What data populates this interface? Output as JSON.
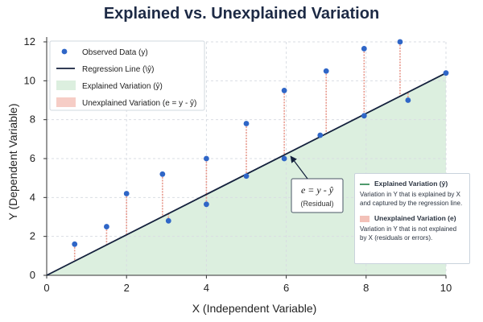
{
  "title": "Explained vs. Unexplained Variation",
  "colors": {
    "title": "#1d2a45",
    "point": "#2f66c7",
    "line": "#14213d",
    "explained_fill": "#dcefdf",
    "residual": "#e89a8e",
    "grid": "#d9dde3"
  },
  "chart_data": {
    "type": "scatter",
    "xlabel": "X (Independent Variable)",
    "ylabel": "Y (Dependent Variable)",
    "xlim": [
      0,
      10
    ],
    "ylim": [
      0,
      12
    ],
    "xticks": [
      0,
      2,
      4,
      6,
      8,
      10
    ],
    "yticks": [
      0,
      2,
      4,
      6,
      8,
      10,
      12
    ],
    "grid": true,
    "legend_position": "top-left",
    "legend": [
      {
        "label": "Observed Data (y)",
        "marker": "point"
      },
      {
        "label": "Regression Line (\\ŷ)",
        "marker": "line"
      },
      {
        "label": "Explained Variation (ŷ)",
        "marker": "green-patch"
      },
      {
        "label": "Unexplained Variation (e = y - ŷ)",
        "marker": "red-patch"
      }
    ],
    "regression_line": {
      "x": [
        0,
        10
      ],
      "y": [
        0,
        10.4
      ]
    },
    "points": [
      {
        "x": 0.7,
        "y": 1.6
      },
      {
        "x": 1.5,
        "y": 2.5
      },
      {
        "x": 2.0,
        "y": 4.2
      },
      {
        "x": 2.9,
        "y": 5.2
      },
      {
        "x": 3.05,
        "y": 2.8
      },
      {
        "x": 4.0,
        "y": 6.0
      },
      {
        "x": 4.0,
        "y": 3.65
      },
      {
        "x": 5.0,
        "y": 7.8
      },
      {
        "x": 5.0,
        "y": 5.1
      },
      {
        "x": 5.95,
        "y": 9.5
      },
      {
        "x": 5.95,
        "y": 6.0
      },
      {
        "x": 6.85,
        "y": 7.2
      },
      {
        "x": 7.0,
        "y": 10.5
      },
      {
        "x": 7.95,
        "y": 11.65
      },
      {
        "x": 7.95,
        "y": 8.2
      },
      {
        "x": 8.85,
        "y": 12.0
      },
      {
        "x": 9.05,
        "y": 9.0
      },
      {
        "x": 10.0,
        "y": 10.4
      }
    ],
    "annotation": {
      "formula": "e = y - ŷ",
      "note": "(Residual)",
      "target_x": 6.05,
      "target_y": 6.2
    }
  },
  "side_panel": {
    "explained_heading": "Explained Variation (ŷ)",
    "explained_text": "Variation in Y that is explained by X and captured by the regression line.",
    "unexplained_heading": "Unexplained Variation (e)",
    "unexplained_text": "Variation in Y that is not explained by X (residuals or errors)."
  }
}
